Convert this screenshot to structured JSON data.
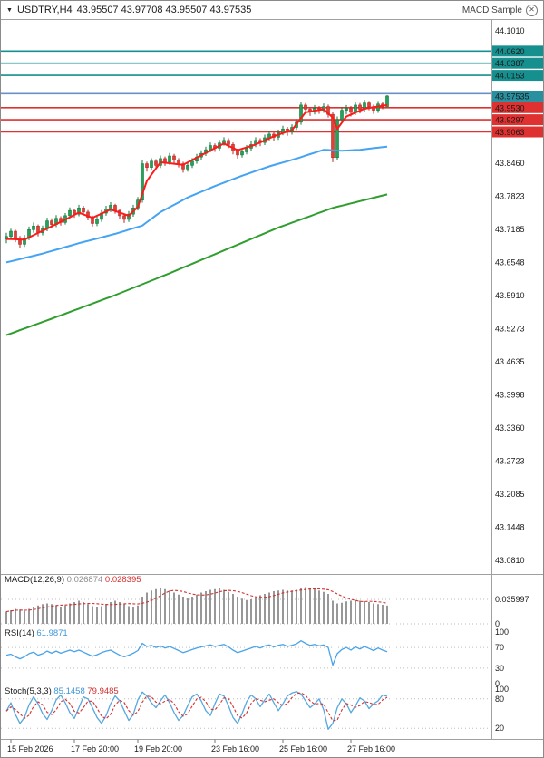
{
  "header": {
    "symbol_info": "USDTRY,H4",
    "ohlc": "43.95507 43.97708 43.95507 43.97535",
    "indicator_chip": "MACD Sample"
  },
  "panels": {
    "macd": {
      "label": "MACD(12,26,9)",
      "value_main": "0.026874",
      "value_signal": "0.028395"
    },
    "rsi": {
      "label": "RSI(14)",
      "value": "61.9871"
    },
    "stoch": {
      "label": "Stoch(5,3,3)",
      "value_k": "85.1458",
      "value_d": "79.9485"
    }
  },
  "colors": {
    "up_fill": "#27a05a",
    "up_stroke": "#0e7a3c",
    "down_fill": "#e04038",
    "down_stroke": "#b42a24",
    "ma_fast": "#ff1a1a",
    "ma_medium": "#44a3f2",
    "ma_slow": "#2f9e2f",
    "teal": "#168f8f",
    "red": "#e03131",
    "blue": "#6b90c9",
    "current_label_bg": "#2a8f9e",
    "hist": "#8c8c8c",
    "signal": "#d33030",
    "rsi": "#4aa3e8",
    "stoch_k": "#57a8dd",
    "stoch_d": "#d33030",
    "grid_dot": "#bdbdbd",
    "frame": "#a0a0a0",
    "text": "#1a1a1a"
  },
  "chart_data": {
    "type": "candlestick",
    "symbol": "USDTRY",
    "timeframe": "H4",
    "price_axis": {
      "min": 43.055,
      "max": 44.115,
      "grid_labels": [
        {
          "v": 44.101,
          "t": "44.1010"
        },
        {
          "v": 43.846,
          "t": "43.8460"
        },
        {
          "v": 43.7823,
          "t": "43.7823"
        },
        {
          "v": 43.7185,
          "t": "43.7185"
        },
        {
          "v": 43.6548,
          "t": "43.6548"
        },
        {
          "v": 43.591,
          "t": "43.5910"
        },
        {
          "v": 43.5273,
          "t": "43.5273"
        },
        {
          "v": 43.4635,
          "t": "43.4635"
        },
        {
          "v": 43.3998,
          "t": "43.3998"
        },
        {
          "v": 43.336,
          "t": "43.3360"
        },
        {
          "v": 43.2723,
          "t": "43.2723"
        },
        {
          "v": 43.2085,
          "t": "43.2085"
        },
        {
          "v": 43.1448,
          "t": "43.1448"
        },
        {
          "v": 43.081,
          "t": "43.0810"
        }
      ]
    },
    "hlines": [
      {
        "price": 44.062,
        "label": "44.0620",
        "color": "teal"
      },
      {
        "price": 44.0387,
        "label": "44.0387",
        "color": "teal"
      },
      {
        "price": 44.0153,
        "label": "44.0153",
        "color": "teal"
      },
      {
        "price": 43.98,
        "label": "",
        "color": "blue"
      },
      {
        "price": 43.953,
        "label": "43.9530",
        "color": "red"
      },
      {
        "price": 43.9297,
        "label": "43.9297",
        "color": "red"
      },
      {
        "price": 43.9063,
        "label": "43.9063",
        "color": "red"
      }
    ],
    "current_price": {
      "value": 43.97535,
      "label": "43.97535"
    },
    "candles": [
      [
        43.7,
        43.712,
        43.692,
        43.705
      ],
      [
        43.705,
        43.72,
        43.7,
        43.715
      ],
      [
        43.715,
        43.718,
        43.694,
        43.7
      ],
      [
        43.7,
        43.706,
        43.682,
        43.69
      ],
      [
        43.69,
        43.708,
        43.685,
        43.702
      ],
      [
        43.702,
        43.724,
        43.698,
        43.718
      ],
      [
        43.718,
        43.732,
        43.712,
        43.725
      ],
      [
        43.725,
        43.728,
        43.705,
        43.712
      ],
      [
        43.712,
        43.726,
        43.707,
        43.72
      ],
      [
        43.72,
        43.741,
        43.715,
        43.735
      ],
      [
        43.735,
        43.74,
        43.722,
        43.728
      ],
      [
        43.728,
        43.746,
        43.723,
        43.74
      ],
      [
        43.74,
        43.744,
        43.726,
        43.732
      ],
      [
        43.732,
        43.75,
        43.728,
        43.745
      ],
      [
        43.745,
        43.761,
        43.74,
        43.755
      ],
      [
        43.755,
        43.758,
        43.741,
        43.748
      ],
      [
        43.748,
        43.766,
        43.744,
        43.76
      ],
      [
        43.76,
        43.764,
        43.746,
        43.752
      ],
      [
        43.752,
        43.756,
        43.736,
        43.742
      ],
      [
        43.742,
        43.745,
        43.724,
        43.73
      ],
      [
        43.73,
        43.744,
        43.725,
        43.738
      ],
      [
        43.738,
        43.756,
        43.733,
        43.75
      ],
      [
        43.75,
        43.764,
        43.745,
        43.758
      ],
      [
        43.758,
        43.771,
        43.752,
        43.765
      ],
      [
        43.765,
        43.768,
        43.749,
        43.755
      ],
      [
        43.755,
        43.758,
        43.739,
        43.745
      ],
      [
        43.745,
        43.749,
        43.731,
        43.738
      ],
      [
        43.738,
        43.754,
        43.733,
        43.748
      ],
      [
        43.748,
        43.766,
        43.743,
        43.76
      ],
      [
        43.76,
        43.781,
        43.755,
        43.775
      ],
      [
        43.775,
        43.852,
        43.77,
        43.845
      ],
      [
        43.845,
        43.849,
        43.83,
        43.838
      ],
      [
        43.838,
        43.856,
        43.833,
        43.85
      ],
      [
        43.85,
        43.854,
        43.835,
        43.842
      ],
      [
        43.842,
        43.861,
        43.837,
        43.855
      ],
      [
        43.855,
        43.859,
        43.841,
        43.848
      ],
      [
        43.848,
        43.866,
        43.843,
        43.86
      ],
      [
        43.86,
        43.864,
        43.845,
        43.852
      ],
      [
        43.852,
        43.856,
        43.838,
        43.845
      ],
      [
        43.845,
        43.849,
        43.828,
        43.835
      ],
      [
        43.835,
        43.848,
        43.83,
        43.842
      ],
      [
        43.842,
        43.856,
        43.837,
        43.85
      ],
      [
        43.85,
        43.864,
        43.845,
        43.858
      ],
      [
        43.858,
        43.871,
        43.853,
        43.865
      ],
      [
        43.865,
        43.878,
        43.86,
        43.872
      ],
      [
        43.872,
        43.886,
        43.867,
        43.88
      ],
      [
        43.88,
        43.884,
        43.868,
        43.875
      ],
      [
        43.875,
        43.891,
        43.87,
        43.885
      ],
      [
        43.885,
        43.896,
        43.88,
        43.89
      ],
      [
        43.89,
        43.894,
        43.875,
        43.882
      ],
      [
        43.882,
        43.886,
        43.863,
        43.87
      ],
      [
        43.87,
        43.874,
        43.855,
        43.862
      ],
      [
        43.862,
        43.874,
        43.857,
        43.868
      ],
      [
        43.868,
        43.881,
        43.863,
        43.875
      ],
      [
        43.875,
        43.888,
        43.87,
        43.882
      ],
      [
        43.882,
        43.896,
        43.877,
        43.89
      ],
      [
        43.89,
        43.894,
        43.879,
        43.886
      ],
      [
        43.886,
        43.901,
        43.881,
        43.895
      ],
      [
        43.895,
        43.908,
        43.89,
        43.902
      ],
      [
        43.902,
        43.906,
        43.889,
        43.896
      ],
      [
        43.896,
        43.911,
        43.891,
        43.905
      ],
      [
        43.905,
        43.918,
        43.9,
        43.912
      ],
      [
        43.912,
        43.916,
        43.899,
        43.906
      ],
      [
        43.906,
        43.921,
        43.901,
        43.915
      ],
      [
        43.915,
        43.931,
        43.91,
        43.925
      ],
      [
        43.925,
        43.964,
        43.92,
        43.958
      ],
      [
        43.958,
        43.962,
        43.942,
        43.95
      ],
      [
        43.95,
        43.954,
        43.937,
        43.945
      ],
      [
        43.945,
        43.958,
        43.94,
        43.952
      ],
      [
        43.952,
        43.956,
        43.941,
        43.948
      ],
      [
        43.948,
        43.961,
        43.943,
        43.955
      ],
      [
        43.955,
        43.959,
        43.934,
        43.94
      ],
      [
        43.94,
        43.944,
        43.848,
        43.857
      ],
      [
        43.857,
        43.936,
        43.852,
        43.93
      ],
      [
        43.93,
        43.954,
        43.925,
        43.948
      ],
      [
        43.948,
        43.958,
        43.94,
        43.952
      ],
      [
        43.952,
        43.956,
        43.936,
        43.944
      ],
      [
        43.944,
        43.964,
        43.939,
        43.958
      ],
      [
        43.958,
        43.962,
        43.942,
        43.95
      ],
      [
        43.95,
        43.968,
        43.945,
        43.962
      ],
      [
        43.962,
        43.966,
        43.948,
        43.955
      ],
      [
        43.955,
        43.959,
        43.941,
        43.948
      ],
      [
        43.948,
        43.966,
        43.943,
        43.96
      ],
      [
        43.96,
        43.964,
        43.95,
        43.955
      ],
      [
        43.95507,
        43.97708,
        43.95507,
        43.97535
      ]
    ],
    "moving_averages": [
      {
        "name": "fast",
        "color_key": "ma_fast",
        "points": [
          [
            0,
            43.7
          ],
          [
            4,
            43.699
          ],
          [
            8,
            43.716
          ],
          [
            12,
            43.733
          ],
          [
            16,
            43.751
          ],
          [
            19,
            43.741
          ],
          [
            23,
            43.757
          ],
          [
            27,
            43.745
          ],
          [
            29,
            43.762
          ],
          [
            31,
            43.812
          ],
          [
            34,
            43.848
          ],
          [
            39,
            43.843
          ],
          [
            44,
            43.866
          ],
          [
            48,
            43.884
          ],
          [
            51,
            43.871
          ],
          [
            55,
            43.882
          ],
          [
            59,
            43.898
          ],
          [
            63,
            43.91
          ],
          [
            66,
            43.944
          ],
          [
            70,
            43.95
          ],
          [
            72,
            43.934
          ],
          [
            73,
            43.912
          ],
          [
            75,
            43.936
          ],
          [
            79,
            43.951
          ],
          [
            84,
            43.958
          ]
        ]
      },
      {
        "name": "medium",
        "color_key": "ma_medium",
        "points": [
          [
            0,
            43.655
          ],
          [
            8,
            43.672
          ],
          [
            16,
            43.692
          ],
          [
            24,
            43.71
          ],
          [
            30,
            43.726
          ],
          [
            34,
            43.752
          ],
          [
            40,
            43.78
          ],
          [
            46,
            43.802
          ],
          [
            52,
            43.822
          ],
          [
            58,
            43.84
          ],
          [
            64,
            43.855
          ],
          [
            70,
            43.872
          ],
          [
            74,
            43.87
          ],
          [
            78,
            43.872
          ],
          [
            84,
            43.878
          ]
        ]
      },
      {
        "name": "slow",
        "color_key": "ma_slow",
        "points": [
          [
            0,
            43.515
          ],
          [
            12,
            43.553
          ],
          [
            24,
            43.592
          ],
          [
            36,
            43.634
          ],
          [
            48,
            43.678
          ],
          [
            60,
            43.722
          ],
          [
            72,
            43.76
          ],
          [
            84,
            43.786
          ]
        ]
      }
    ],
    "macd": {
      "current_main": 0.026874,
      "current_signal": 0.028395,
      "axis": [
        {
          "v": 0.035997,
          "t": "0.035997",
          "dot": true
        },
        {
          "v": 0,
          "t": "0",
          "dot": true
        }
      ],
      "hist": [
        0.018,
        0.02,
        0.022,
        0.021,
        0.019,
        0.022,
        0.025,
        0.027,
        0.029,
        0.03,
        0.029,
        0.027,
        0.025,
        0.027,
        0.03,
        0.032,
        0.034,
        0.032,
        0.029,
        0.026,
        0.024,
        0.026,
        0.029,
        0.032,
        0.034,
        0.032,
        0.029,
        0.026,
        0.024,
        0.027,
        0.04,
        0.046,
        0.049,
        0.051,
        0.052,
        0.051,
        0.049,
        0.046,
        0.043,
        0.04,
        0.038,
        0.04,
        0.043,
        0.046,
        0.048,
        0.05,
        0.051,
        0.052,
        0.05,
        0.047,
        0.044,
        0.04,
        0.037,
        0.035,
        0.036,
        0.039,
        0.042,
        0.044,
        0.046,
        0.048,
        0.049,
        0.05,
        0.049,
        0.049,
        0.05,
        0.053,
        0.054,
        0.053,
        0.051,
        0.049,
        0.047,
        0.044,
        0.034,
        0.03,
        0.031,
        0.033,
        0.034,
        0.035,
        0.034,
        0.033,
        0.032,
        0.03,
        0.029,
        0.028,
        0.0269
      ]
    },
    "rsi": {
      "current": 61.9871,
      "axis": [
        {
          "v": 100,
          "t": "100",
          "dot": false
        },
        {
          "v": 70,
          "t": "70",
          "dot": true
        },
        {
          "v": 30,
          "t": "30",
          "dot": true
        },
        {
          "v": 0,
          "t": "0",
          "dot": false
        }
      ],
      "values": [
        55,
        57,
        52,
        48,
        52,
        58,
        61,
        55,
        58,
        63,
        59,
        63,
        59,
        62,
        65,
        62,
        65,
        61,
        57,
        53,
        56,
        60,
        63,
        65,
        60,
        55,
        52,
        55,
        59,
        64,
        78,
        72,
        74,
        70,
        73,
        69,
        72,
        68,
        64,
        60,
        63,
        66,
        69,
        71,
        73,
        75,
        72,
        74,
        76,
        71,
        65,
        60,
        63,
        66,
        69,
        72,
        69,
        73,
        75,
        71,
        74,
        76,
        72,
        74,
        77,
        83,
        78,
        74,
        76,
        73,
        75,
        70,
        36,
        58,
        66,
        70,
        65,
        71,
        67,
        72,
        68,
        64,
        69,
        65,
        62
      ]
    },
    "stoch": {
      "current_k": 85.1458,
      "current_d": 79.9485,
      "axis": [
        {
          "v": 100,
          "t": "100",
          "dot": false
        },
        {
          "v": 80,
          "t": "80",
          "dot": true
        },
        {
          "v": 20,
          "t": "20",
          "dot": true
        }
      ],
      "k": [
        55,
        72,
        48,
        30,
        42,
        68,
        84,
        70,
        50,
        38,
        56,
        78,
        88,
        72,
        52,
        40,
        62,
        84,
        80,
        62,
        42,
        30,
        46,
        70,
        86,
        76,
        56,
        36,
        48,
        78,
        94,
        86,
        72,
        62,
        76,
        88,
        72,
        52,
        36,
        46,
        66,
        84,
        90,
        76,
        56,
        46,
        70,
        90,
        86,
        66,
        42,
        30,
        50,
        74,
        88,
        80,
        64,
        78,
        90,
        72,
        56,
        70,
        86,
        92,
        95,
        90,
        76,
        62,
        70,
        80,
        58,
        18,
        30,
        62,
        80,
        70,
        52,
        66,
        82,
        76,
        60,
        70,
        76,
        88,
        85.1
      ]
    },
    "time_labels": [
      {
        "i": 1,
        "t": "15 Feb 2026"
      },
      {
        "i": 15,
        "t": "17 Feb 20:00"
      },
      {
        "i": 29,
        "t": "19 Feb 20:00"
      },
      {
        "i": 46,
        "t": "23 Feb 16:00"
      },
      {
        "i": 61,
        "t": "25 Feb 16:00"
      },
      {
        "i": 76,
        "t": "27 Feb 16:00"
      }
    ]
  }
}
